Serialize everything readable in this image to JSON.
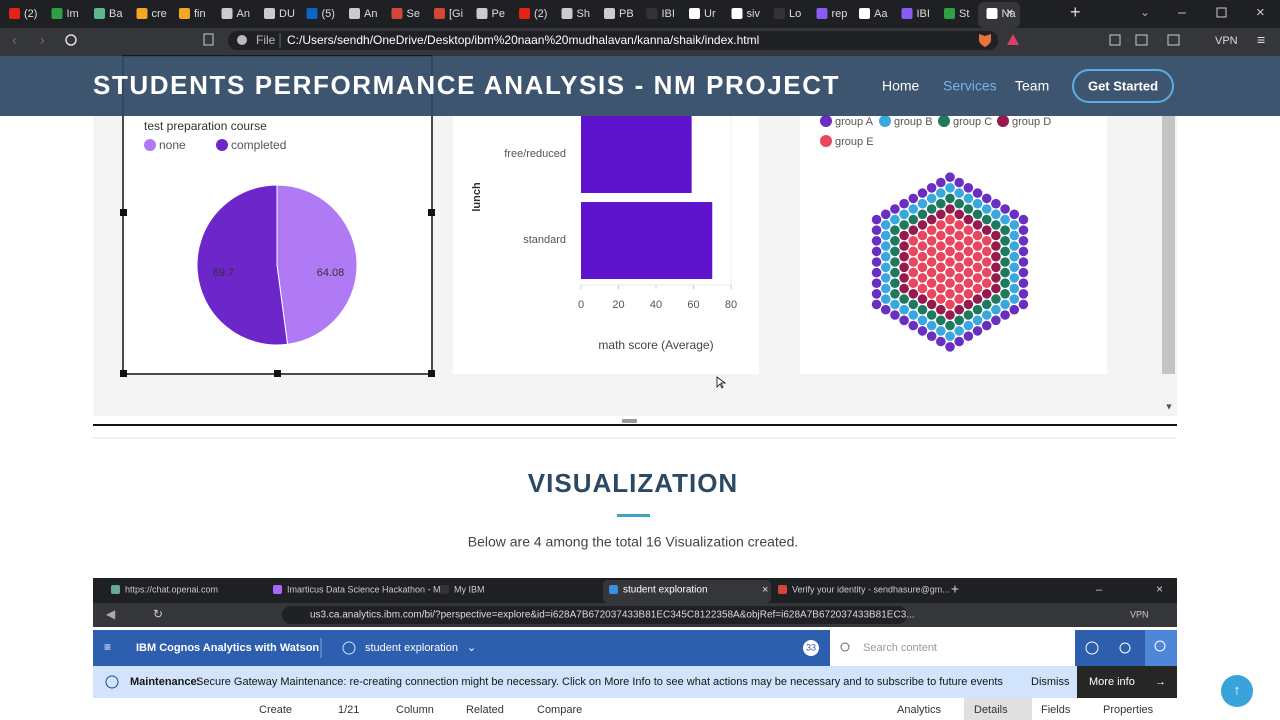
{
  "browser": {
    "tabs": [
      "(2)",
      "Im",
      "Ba",
      "cre",
      "fin",
      "An",
      "DU",
      "(5)",
      "An",
      "Se",
      "[Gi",
      "Pe",
      "(2)",
      "Sh",
      "PB",
      "IBI",
      "Ur",
      "siv",
      "Lo",
      "rep",
      "Aa",
      "IBI",
      "St",
      "Na"
    ],
    "scheme": "File",
    "url": "C:/Users/sendh/OneDrive/Desktop/ibm%20naan%20mudhalavan/kanna/shaik/index.html",
    "vpn": "VPN"
  },
  "site": {
    "title": "STUDENTS PERFORMANCE ANALYSIS - NM PROJECT",
    "nav": [
      "Home",
      "Services",
      "Team"
    ],
    "cta": "Get Started"
  },
  "charts": [
    {
      "type": "pie",
      "legend_title": "test preparation course",
      "categories": [
        "none",
        "completed"
      ],
      "values": [
        64.08,
        69.7
      ],
      "colors": [
        "#b07af4",
        "#6d26c9"
      ]
    },
    {
      "type": "bar",
      "y_label": "lunch",
      "x_label": "math score (Average)",
      "categories": [
        "free/reduced",
        "standard"
      ],
      "values": [
        59,
        70
      ],
      "color": "#5e14cc",
      "xlim": [
        0,
        80
      ],
      "xticks": [
        0,
        20,
        40,
        60,
        80
      ]
    },
    {
      "type": "packed-dots",
      "legend": [
        "group A",
        "group B",
        "group C",
        "group D",
        "group E"
      ],
      "colors": [
        "#6a2fc0",
        "#3aa7de",
        "#1e7a5e",
        "#951b4f",
        "#e8475f"
      ]
    }
  ],
  "section": {
    "title": "VISUALIZATION",
    "subtitle": "Below are 4 among the total 16 Visualization created."
  },
  "embedded": {
    "tabs": [
      "https://chat.openai.com",
      "Imarticus Data Science Hackathon - M...",
      "My IBM",
      "student exploration",
      "Verify your identity - sendhasure@gm..."
    ],
    "url": "us3.ca.analytics.ibm.com/bi/?perspective=explore&id=i628A7B672037433B81EC345C8122358A&objRef=i628A7B672037433B81EC3...",
    "vpn": "VPN",
    "app": "IBM Cognos Analytics with Watson",
    "page": "student exploration",
    "badge": "33",
    "search": "Search content",
    "maintenance_label": "Maintenance:",
    "maintenance_text": "Secure Gateway Maintenance: re-creating connection might be necessary. Click on More Info to see what actions may be necessary and to subscribe to future events",
    "dismiss": "Dismiss",
    "more_info": "More info",
    "toolbar_left": [
      "Create",
      "1/21",
      "Column",
      "Related",
      "Compare"
    ],
    "toolbar_right": [
      "Analytics",
      "Details",
      "Fields",
      "Properties"
    ]
  }
}
